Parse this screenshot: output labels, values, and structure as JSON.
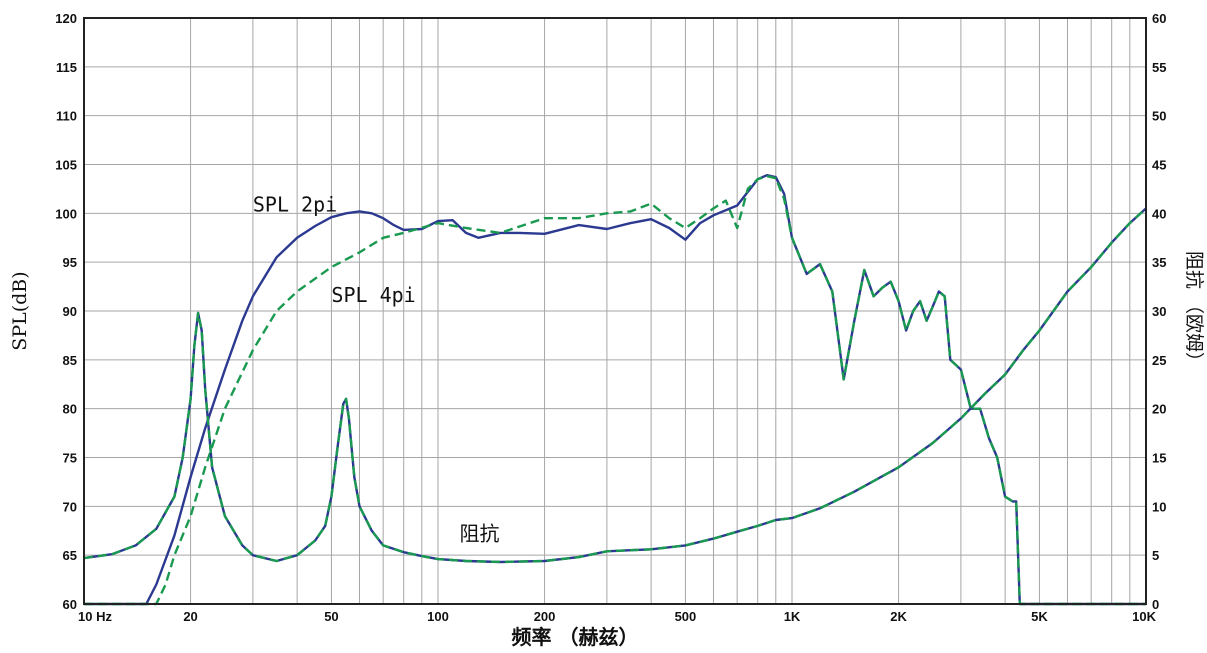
{
  "chart_data": {
    "type": "line",
    "xscale": "log",
    "xlim": [
      10,
      10000
    ],
    "ylim_left": [
      60,
      120
    ],
    "ylim_right": [
      0,
      60
    ],
    "grid": true,
    "xlabel": "频率 （赫兹）",
    "ylabel_left": "SPL(dB)",
    "ylabel_right": "阻抗 （欧姆）",
    "x_ticks": [
      {
        "value": 10,
        "label": "10 Hz"
      },
      {
        "value": 20,
        "label": "20"
      },
      {
        "value": 50,
        "label": "50"
      },
      {
        "value": 100,
        "label": "100"
      },
      {
        "value": 200,
        "label": "200"
      },
      {
        "value": 500,
        "label": "500"
      },
      {
        "value": 1000,
        "label": "1K"
      },
      {
        "value": 2000,
        "label": "2K"
      },
      {
        "value": 5000,
        "label": "5K"
      },
      {
        "value": 10000,
        "label": "10K"
      }
    ],
    "y_ticks_left": [
      "60",
      "65",
      "70",
      "75",
      "80",
      "85",
      "90",
      "95",
      "100",
      "105",
      "110",
      "115",
      "120"
    ],
    "y_ticks_right": [
      "0",
      "5",
      "10",
      "15",
      "20",
      "25",
      "30",
      "35",
      "40",
      "45",
      "50",
      "55",
      "60"
    ],
    "series": [
      {
        "name": "SPL 2pi",
        "axis": "left",
        "style": "solid",
        "color": "#2b3990",
        "x": [
          10,
          15,
          16,
          18,
          20,
          22,
          25,
          28,
          30,
          35,
          40,
          45,
          50,
          55,
          60,
          65,
          70,
          75,
          80,
          90,
          100,
          110,
          120,
          130,
          150,
          170,
          200,
          250,
          300,
          350,
          400,
          450,
          500,
          550,
          600,
          700,
          800,
          850,
          900,
          950,
          1000,
          1100,
          1200,
          1300,
          1400,
          1500,
          1600,
          1700,
          1800,
          1900,
          2000,
          2100,
          2200,
          2300,
          2400,
          2500,
          2600,
          2700,
          2800,
          3000,
          3200,
          3400,
          3600,
          3800,
          4000,
          4200,
          4300,
          4400,
          4500,
          5000,
          7000,
          10000
        ],
        "y": [
          60,
          60,
          62,
          67,
          73,
          78,
          84,
          89,
          91.5,
          95.5,
          97.5,
          98.7,
          99.6,
          100,
          100.2,
          100,
          99.5,
          98.8,
          98.3,
          98.4,
          99.2,
          99.3,
          98,
          97.5,
          98,
          98,
          97.9,
          98.8,
          98.4,
          99,
          99.4,
          98.5,
          97.3,
          99,
          99.8,
          100.8,
          103.5,
          103.9,
          103.7,
          102,
          97.5,
          93.8,
          94.8,
          92,
          83,
          89,
          94.2,
          91.5,
          92.4,
          93,
          91,
          88,
          90,
          91,
          89,
          90.5,
          92,
          91.5,
          85,
          84,
          80,
          80,
          77,
          75,
          71,
          70.5,
          70.5,
          60,
          60,
          60,
          60,
          60
        ]
      },
      {
        "name": "SPL 4pi",
        "axis": "left",
        "style": "dashed",
        "color": "#1a9a50",
        "x": [
          10,
          16,
          17,
          18,
          20,
          22,
          25,
          30,
          35,
          40,
          50,
          60,
          70,
          80,
          100,
          120,
          150,
          200,
          250,
          300,
          350,
          400,
          450,
          500,
          550,
          600,
          650,
          700,
          750,
          800,
          850,
          900,
          950,
          1000,
          1100,
          1200,
          1300,
          1400,
          1500,
          1600,
          1700,
          1800,
          1900,
          2000,
          2100,
          2200,
          2300,
          2400,
          2500,
          2600,
          2700,
          2800,
          3000,
          3200,
          3400,
          3600,
          3800,
          4000,
          4200,
          4300,
          4400,
          4500,
          5000,
          7000,
          10000
        ],
        "y": [
          60,
          60,
          62,
          65,
          69,
          74,
          80,
          86,
          90,
          92,
          94.5,
          96,
          97.5,
          98,
          99,
          98.5,
          98,
          99.5,
          99.5,
          100,
          100.2,
          101,
          99.5,
          98.5,
          99.5,
          100.5,
          101.3,
          98.5,
          102.5,
          103.5,
          103.8,
          103.6,
          101.5,
          97.5,
          93.8,
          94.8,
          92,
          83,
          89,
          94.2,
          91.5,
          92.4,
          93,
          91,
          88,
          90,
          91,
          89,
          90.5,
          92,
          91.5,
          85,
          84,
          80,
          80,
          77,
          75,
          71,
          70.5,
          70.5,
          60,
          60,
          60,
          60,
          60
        ]
      },
      {
        "name": "阻抗",
        "axis": "right",
        "style": "solid",
        "color": "#2b3990",
        "overlay_style": "dashed",
        "overlay_color": "#1a9a50",
        "x": [
          10,
          12,
          14,
          16,
          18,
          19,
          20,
          20.5,
          21,
          21.5,
          22,
          23,
          25,
          28,
          30,
          35,
          40,
          45,
          48,
          50,
          52,
          54,
          55,
          56,
          58,
          60,
          65,
          70,
          80,
          90,
          100,
          120,
          150,
          200,
          250,
          300,
          400,
          500,
          600,
          700,
          800,
          900,
          1000,
          1200,
          1500,
          2000,
          2500,
          3000,
          3500,
          4000,
          4500,
          5000,
          6000,
          7000,
          8000,
          9000,
          10000
        ],
        "y": [
          4.7,
          5.1,
          6,
          7.7,
          11,
          15,
          21,
          26.5,
          29.8,
          28,
          22,
          14,
          9,
          6,
          5,
          4.4,
          5,
          6.5,
          8,
          11,
          16,
          20.5,
          21,
          19,
          13,
          10,
          7.5,
          6,
          5.3,
          4.9,
          4.6,
          4.4,
          4.3,
          4.4,
          4.8,
          5.4,
          5.6,
          6,
          6.7,
          7.4,
          8,
          8.6,
          8.8,
          9.8,
          11.5,
          14,
          16.5,
          19,
          21.5,
          23.5,
          26,
          28,
          32,
          34.5,
          37,
          39,
          40.5
        ]
      }
    ],
    "annotations": [
      {
        "text": "SPL 2pi",
        "x": 30,
        "y": 100.2
      },
      {
        "text": "SPL 4pi",
        "x": 50,
        "y": 90.9
      },
      {
        "text": "阻抗",
        "x": 115,
        "y": 66.5
      }
    ]
  }
}
